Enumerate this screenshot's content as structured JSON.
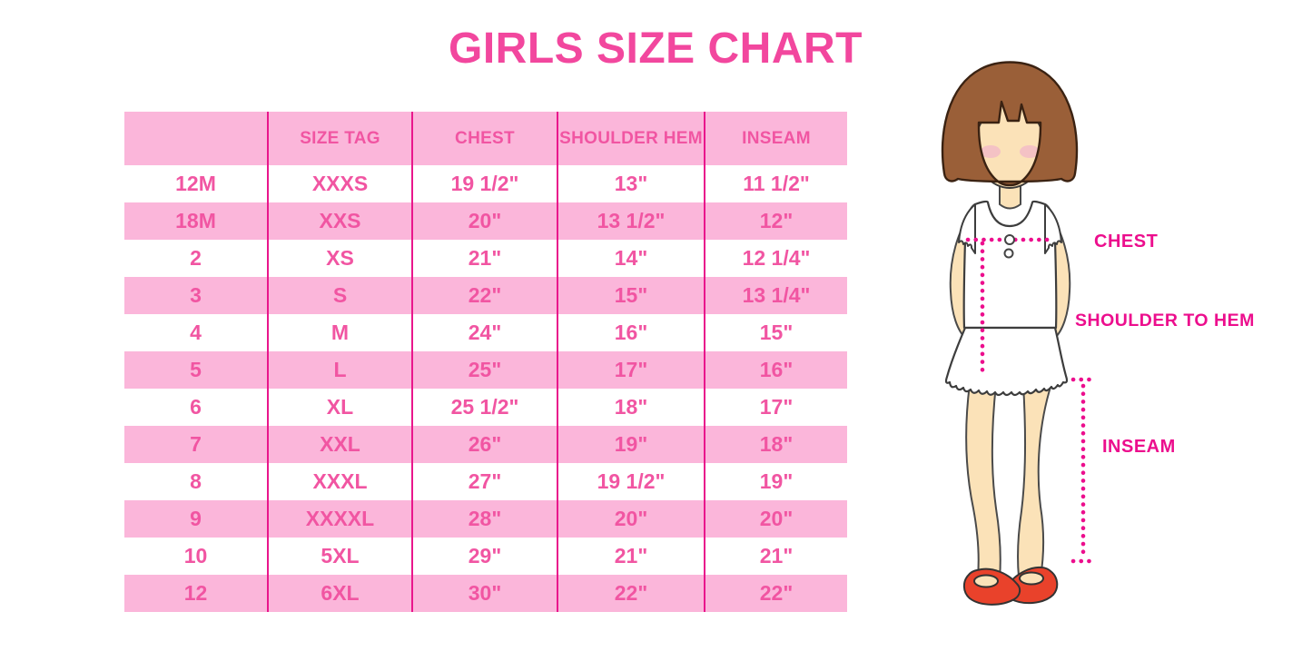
{
  "title": "GIRLS SIZE CHART",
  "chart_data": {
    "type": "table",
    "title": "GIRLS SIZE CHART",
    "headers": [
      "",
      "SIZE TAG",
      "CHEST",
      "SHOULDER HEM",
      "INSEAM"
    ],
    "rows": [
      [
        "12M",
        "XXXS",
        "19 1/2\"",
        "13\"",
        "11 1/2\""
      ],
      [
        "18M",
        "XXS",
        "20\"",
        "13 1/2\"",
        "12\""
      ],
      [
        "2",
        "XS",
        "21\"",
        "14\"",
        "12 1/4\""
      ],
      [
        "3",
        "S",
        "22\"",
        "15\"",
        "13 1/4\""
      ],
      [
        "4",
        "M",
        "24\"",
        "16\"",
        "15\""
      ],
      [
        "5",
        "L",
        "25\"",
        "17\"",
        "16\""
      ],
      [
        "6",
        "XL",
        "25 1/2\"",
        "18\"",
        "17\""
      ],
      [
        "7",
        "XXL",
        "26\"",
        "19\"",
        "18\""
      ],
      [
        "8",
        "XXXL",
        "27\"",
        "19 1/2\"",
        "19\""
      ],
      [
        "9",
        "XXXXL",
        "28\"",
        "20\"",
        "20\""
      ],
      [
        "10",
        "5XL",
        "29\"",
        "21\"",
        "21\""
      ],
      [
        "12",
        "6XL",
        "30\"",
        "22\"",
        "22\""
      ]
    ]
  },
  "figure": {
    "chest_label": "CHEST",
    "shoulder_to_hem_label": "SHOULDER TO HEM",
    "inseam_label": "INSEAM"
  },
  "colors": {
    "title_pink": "#F2479E",
    "table_text_pink": "#F155A2",
    "row_pink": "#FBB6DA",
    "divider_pink": "#E9168C",
    "label_magenta": "#EC0E8D",
    "hair_brown": "#9A5F38",
    "skin_tone": "#FBE2B8",
    "blush_pink": "#F3BFC6",
    "shoe_red": "#E9422B"
  }
}
